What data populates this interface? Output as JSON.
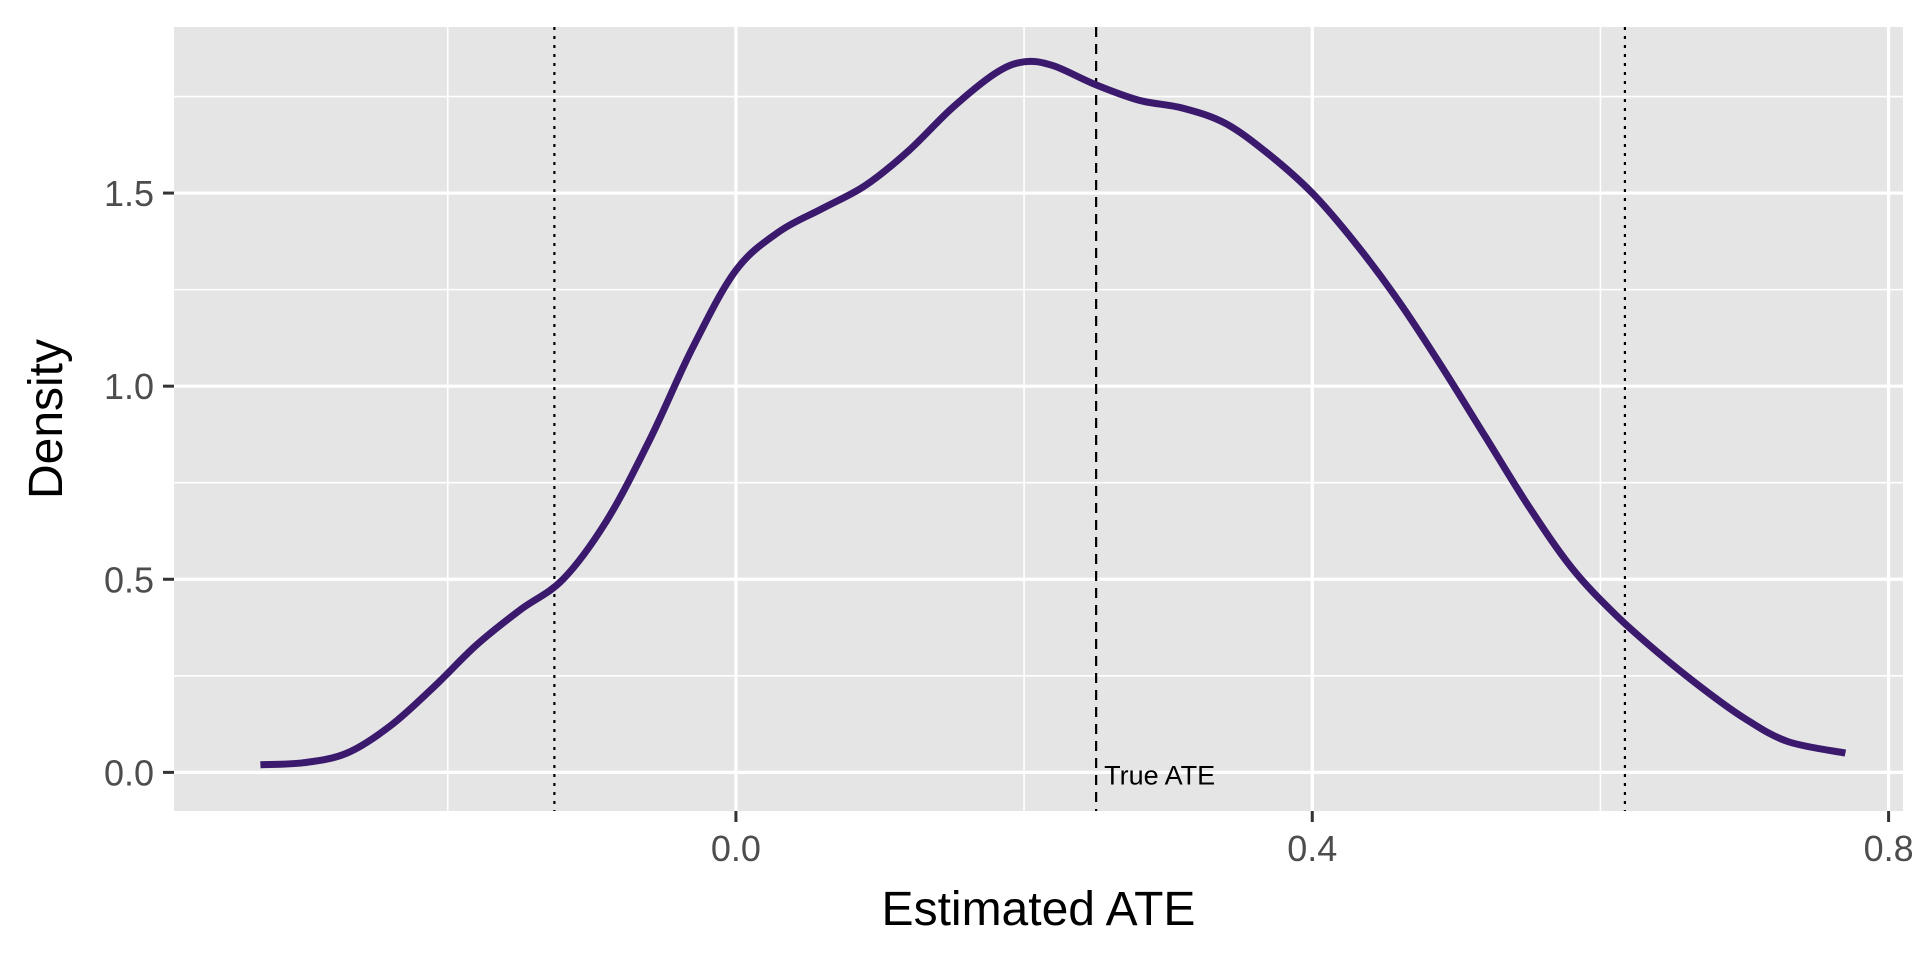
{
  "chart_data": {
    "type": "line",
    "title": "",
    "xlabel": "Estimated ATE",
    "ylabel": "Density",
    "xlim": [
      -0.39,
      0.81
    ],
    "ylim": [
      -0.1,
      1.93
    ],
    "x_ticks": [
      "0.0",
      "0.4",
      "0.8"
    ],
    "x_tick_values": [
      0.0,
      0.4,
      0.8
    ],
    "y_ticks": [
      "0.0",
      "0.5",
      "1.0",
      "1.5"
    ],
    "y_tick_values": [
      0.0,
      0.5,
      1.0,
      1.5
    ],
    "grid": true,
    "legend": "none",
    "colors": {
      "panel": "#e5e5e5",
      "grid": "#ffffff",
      "line": "#3b1a6e",
      "axis_text": "#4d4d4d"
    },
    "series": [
      {
        "x": [
          -0.33,
          -0.3,
          -0.27,
          -0.24,
          -0.21,
          -0.18,
          -0.15,
          -0.12,
          -0.09,
          -0.06,
          -0.03,
          0.0,
          0.03,
          0.06,
          0.09,
          0.12,
          0.15,
          0.18,
          0.2,
          0.22,
          0.25,
          0.28,
          0.31,
          0.34,
          0.37,
          0.4,
          0.43,
          0.46,
          0.49,
          0.52,
          0.55,
          0.58,
          0.61,
          0.64,
          0.67,
          0.7,
          0.73,
          0.77
        ],
        "y": [
          0.02,
          0.025,
          0.05,
          0.12,
          0.22,
          0.33,
          0.42,
          0.5,
          0.65,
          0.86,
          1.1,
          1.3,
          1.4,
          1.46,
          1.52,
          1.61,
          1.72,
          1.81,
          1.84,
          1.83,
          1.78,
          1.74,
          1.72,
          1.68,
          1.6,
          1.5,
          1.37,
          1.22,
          1.05,
          0.87,
          0.69,
          0.53,
          0.41,
          0.31,
          0.22,
          0.14,
          0.08,
          0.05
        ]
      }
    ],
    "reference_lines": [
      {
        "x": 0.25,
        "style": "dashed",
        "label": "True ATE"
      },
      {
        "x": -0.126,
        "style": "dotted"
      },
      {
        "x": 0.617,
        "style": "dotted"
      }
    ]
  }
}
